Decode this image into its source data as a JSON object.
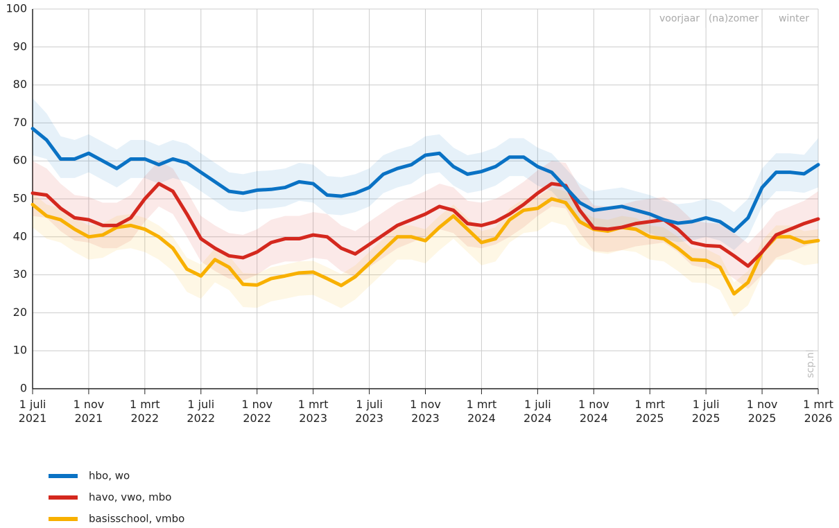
{
  "chart_data": {
    "type": "line",
    "x": [
      "2021-07",
      "2021-08",
      "2021-09",
      "2021-10",
      "2021-11",
      "2021-12",
      "2022-01",
      "2022-02",
      "2022-03",
      "2022-04",
      "2022-05",
      "2022-06",
      "2022-07",
      "2022-08",
      "2022-09",
      "2022-10",
      "2022-11",
      "2022-12",
      "2023-01",
      "2023-02",
      "2023-03",
      "2023-04",
      "2023-05",
      "2023-06",
      "2023-07",
      "2023-08",
      "2023-09",
      "2023-10",
      "2023-11",
      "2023-12",
      "2024-01",
      "2024-02",
      "2024-03",
      "2024-04",
      "2024-05",
      "2024-06",
      "2024-07",
      "2024-08",
      "2024-09",
      "2024-10",
      "2024-11",
      "2024-12",
      "2025-01",
      "2025-02",
      "2025-03",
      "2025-04",
      "2025-05",
      "2025-06",
      "2025-07",
      "2025-08",
      "2025-09",
      "2025-10",
      "2025-11",
      "2025-12",
      "2026-01",
      "2026-02",
      "2026-03"
    ],
    "series": [
      {
        "name": "hbo, wo",
        "color": "#0a72c4",
        "values": [
          68.5,
          65.5,
          60.5,
          60.5,
          62,
          60,
          58,
          60.5,
          60.5,
          59,
          60.5,
          59.5,
          57,
          54.5,
          52,
          51.5,
          52.3,
          52.5,
          53,
          54.5,
          54,
          51,
          50.7,
          51.5,
          53,
          56.5,
          58,
          59,
          61.5,
          62,
          58.5,
          56.5,
          57.2,
          58.5,
          61,
          61,
          58.5,
          57,
          53,
          49,
          47,
          47.5,
          48,
          47,
          46,
          44.5,
          43.6,
          44,
          45,
          44,
          41.5,
          45,
          53,
          57,
          57,
          56.6,
          59
        ],
        "upper": [
          76.5,
          72.5,
          66.5,
          65.5,
          67,
          65,
          63,
          65.5,
          65.5,
          64,
          65.5,
          64.5,
          62,
          59.5,
          57,
          56.5,
          57.3,
          57.5,
          58,
          59.5,
          59,
          56,
          55.7,
          56.5,
          58,
          61.5,
          63,
          64,
          66.5,
          67,
          63.5,
          61.5,
          62.2,
          63.5,
          66,
          66,
          63.5,
          62,
          58,
          54,
          52,
          52.5,
          53,
          52,
          51,
          49.5,
          48.6,
          49,
          50,
          49,
          46.5,
          50,
          58,
          62,
          62,
          61.6,
          66
        ],
        "lower": [
          61.5,
          60.5,
          55.5,
          55.5,
          57,
          55,
          53,
          55.5,
          55.5,
          54,
          55.5,
          54.5,
          52,
          49.5,
          47,
          46.5,
          47.3,
          47.5,
          48,
          49.5,
          49,
          46,
          45.7,
          46.5,
          48,
          51.5,
          53,
          54,
          56.5,
          57,
          53.5,
          51.5,
          52.2,
          53.5,
          56,
          56,
          53.5,
          52,
          48,
          44,
          42,
          42.5,
          43,
          42,
          41,
          39.5,
          38.6,
          39,
          40,
          39,
          36.5,
          40,
          48,
          52,
          52,
          51.6,
          53
        ]
      },
      {
        "name": "havo, vwo, mbo",
        "color": "#d4281e",
        "values": [
          51.5,
          51,
          47.5,
          45,
          44.5,
          43,
          43,
          45,
          50,
          54,
          52,
          46,
          39.5,
          37,
          35,
          34.5,
          36,
          38.5,
          39.5,
          39.5,
          40.5,
          40,
          37,
          35.5,
          38,
          40.5,
          43,
          44.5,
          46,
          48,
          47,
          43.5,
          43,
          44,
          46,
          48.5,
          51.5,
          54,
          53.5,
          47,
          42.3,
          42,
          42.5,
          43.5,
          44,
          44.5,
          42,
          38.5,
          37.7,
          37.5,
          35,
          32.3,
          36,
          40.5,
          42,
          43.5,
          44.7
        ],
        "upper": [
          60,
          58,
          54,
          51,
          50.5,
          49,
          49,
          51,
          56,
          60,
          58,
          52,
          45.5,
          43,
          41,
          40.5,
          42,
          44.5,
          45.5,
          45.5,
          46.5,
          46,
          43,
          41.5,
          44,
          46.5,
          49,
          50.5,
          52,
          54,
          53,
          49.5,
          49,
          50,
          52,
          54.5,
          57.5,
          60,
          59.5,
          53,
          48.3,
          48,
          48.5,
          49.5,
          50,
          50.5,
          48,
          44.5,
          43.7,
          43.5,
          41,
          38.3,
          42,
          46.5,
          48,
          49.5,
          52
        ],
        "lower": [
          45.5,
          45,
          41.5,
          39,
          38.5,
          37,
          37,
          39,
          44,
          48,
          46,
          40,
          33.5,
          31,
          29,
          28.5,
          30,
          32.5,
          33.5,
          33.5,
          34.5,
          34,
          31,
          29.5,
          32,
          34.5,
          37,
          38.5,
          40,
          42,
          41,
          37.5,
          37,
          38,
          40,
          42.5,
          45.5,
          48,
          47.5,
          41,
          36.3,
          36,
          36.5,
          37.5,
          38,
          38.5,
          36,
          32.5,
          31.7,
          31.5,
          29,
          26.3,
          30,
          34.5,
          36,
          37.5,
          38.7
        ]
      },
      {
        "name": "basisschool, vmbo",
        "color": "#f8b000",
        "values": [
          48.5,
          45.5,
          44.5,
          42,
          40,
          40.5,
          42.5,
          43,
          42,
          40,
          37,
          31.5,
          29.7,
          34,
          32,
          27.5,
          27.3,
          29,
          29.7,
          30.5,
          30.7,
          29,
          27.2,
          29.5,
          33,
          36.5,
          40,
          40,
          39,
          42.5,
          45.5,
          42,
          38.5,
          39.5,
          44.5,
          47,
          47.5,
          50,
          49,
          44,
          42,
          41.5,
          42.5,
          42,
          40,
          39.5,
          37,
          34,
          33.8,
          32,
          25,
          28,
          36,
          40,
          40,
          38.5,
          39
        ],
        "upper": [
          51.5,
          48.5,
          47.5,
          45,
          43,
          43.5,
          45.5,
          46,
          45,
          43,
          40,
          34.5,
          32.7,
          37,
          35,
          30.5,
          30.3,
          32,
          32.7,
          33.5,
          33.7,
          32,
          30.2,
          32.5,
          36,
          39.5,
          43,
          43,
          42,
          45.5,
          48.5,
          45,
          41.5,
          42.5,
          47.5,
          50,
          50.5,
          53,
          52,
          47,
          45,
          44.5,
          45.5,
          45,
          43,
          42.5,
          40,
          37,
          36.8,
          35,
          28,
          31,
          39,
          43,
          43,
          41.5,
          42
        ],
        "lower": [
          42.5,
          39.5,
          38.5,
          36,
          34,
          34.5,
          36.5,
          37,
          36,
          34,
          31,
          25.5,
          23.7,
          28,
          26,
          21.5,
          21.3,
          23,
          23.7,
          24.5,
          24.7,
          23,
          21.2,
          23.5,
          27,
          30.5,
          34,
          34,
          33,
          36.5,
          39.5,
          36,
          32.5,
          33.5,
          38.5,
          41,
          41.5,
          44,
          43,
          38,
          36,
          35.5,
          36.5,
          36,
          34,
          33.5,
          31,
          28,
          27.8,
          26,
          19,
          22,
          30,
          34,
          34,
          32.5,
          33
        ]
      }
    ],
    "xlim": [
      "2021-07",
      "2026-03"
    ],
    "xticks": [
      {
        "value": "2021-07",
        "label": "1 juli 2021"
      },
      {
        "value": "2021-11",
        "label": "1 nov 2021"
      },
      {
        "value": "2022-03",
        "label": "1 mrt 2022"
      },
      {
        "value": "2022-07",
        "label": "1 juli 2022"
      },
      {
        "value": "2022-11",
        "label": "1 nov 2022"
      },
      {
        "value": "2023-03",
        "label": "1 mrt 2023"
      },
      {
        "value": "2023-07",
        "label": "1 juli 2023"
      },
      {
        "value": "2023-11",
        "label": "1 nov 2023"
      },
      {
        "value": "2024-03",
        "label": "1 mrt 2024"
      },
      {
        "value": "2024-07",
        "label": "1 juli 2024"
      },
      {
        "value": "2024-11",
        "label": "1 nov 2024"
      },
      {
        "value": "2025-03",
        "label": "1 mrt 2025"
      },
      {
        "value": "2025-07",
        "label": "1 juli 2025"
      },
      {
        "value": "2025-11",
        "label": "1 nov 2025"
      },
      {
        "value": "2026-03",
        "label": "1 mrt 2026"
      }
    ],
    "ylim": [
      0,
      100
    ],
    "yticks": [
      0,
      10,
      20,
      30,
      40,
      50,
      60,
      70,
      80,
      90,
      100
    ],
    "grid": true,
    "annotations": [
      "voorjaar",
      "(na)zomer",
      "winter"
    ],
    "source": "scp.nl"
  }
}
